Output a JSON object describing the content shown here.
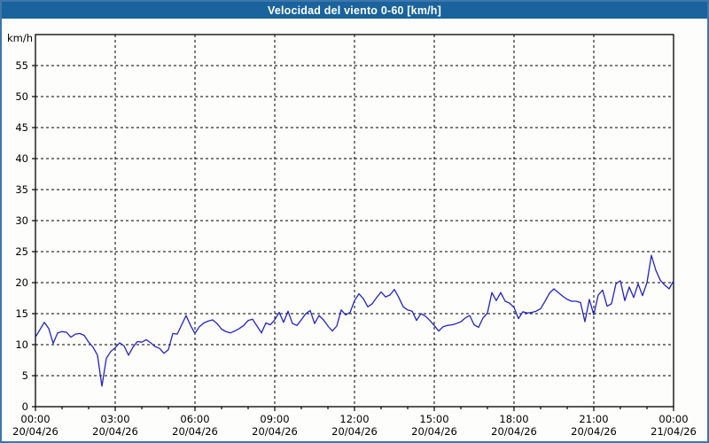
{
  "header": {
    "title": "Velocidad del viento 0-60 [km/h]"
  },
  "colors": {
    "titlebar_bg": "#1A639C",
    "titlebar_text": "#FFFFFF",
    "frame_border": "#3E76AC",
    "plot_background": "#FDFDFB",
    "grid": "#000000",
    "axis": "#000000",
    "line": "#2323C8"
  },
  "chart_data": {
    "type": "line",
    "title": "Velocidad del viento 0-60 [km/h]",
    "ylabel": "km/h",
    "ylim": [
      0,
      60
    ],
    "yticks": [
      0,
      5,
      10,
      15,
      20,
      25,
      30,
      35,
      40,
      45,
      50,
      55
    ],
    "x_hours_range": [
      0,
      24
    ],
    "x_sample_interval_minutes": 10,
    "x_minor_tick_every_hours": 1,
    "grid": "dashed",
    "legend": "none",
    "x_major_ticks": [
      {
        "hour": 0,
        "time": "00:00",
        "date": "20/04/26"
      },
      {
        "hour": 3,
        "time": "03:00",
        "date": "20/04/26"
      },
      {
        "hour": 6,
        "time": "06:00",
        "date": "20/04/26"
      },
      {
        "hour": 9,
        "time": "09:00",
        "date": "20/04/26"
      },
      {
        "hour": 12,
        "time": "12:00",
        "date": "20/04/26"
      },
      {
        "hour": 15,
        "time": "15:00",
        "date": "20/04/26"
      },
      {
        "hour": 18,
        "time": "18:00",
        "date": "20/04/26"
      },
      {
        "hour": 21,
        "time": "21:00",
        "date": "20/04/26"
      },
      {
        "hour": 24,
        "time": "00:00",
        "date": "21/04/26"
      }
    ],
    "values": [
      11.2,
      12.4,
      13.6,
      12.6,
      10.2,
      11.9,
      12.1,
      12.0,
      11.2,
      11.7,
      11.8,
      11.5,
      10.4,
      9.6,
      8.3,
      3.3,
      7.8,
      8.9,
      9.5,
      10.3,
      9.8,
      8.3,
      9.6,
      10.5,
      10.4,
      10.8,
      10.3,
      9.7,
      9.4,
      8.6,
      9.2,
      11.8,
      11.7,
      13.2,
      14.7,
      13.1,
      11.8,
      12.9,
      13.5,
      13.8,
      14.0,
      13.4,
      12.5,
      12.1,
      11.9,
      12.2,
      12.6,
      13.1,
      13.9,
      14.1,
      13.0,
      11.9,
      13.5,
      13.2,
      14.0,
      15.2,
      13.6,
      15.4,
      13.4,
      13.1,
      14.0,
      15.0,
      15.5,
      13.4,
      14.7,
      14.0,
      13.0,
      12.2,
      13.0,
      15.6,
      14.8,
      15.2,
      17.1,
      18.2,
      17.4,
      16.1,
      16.6,
      17.6,
      18.5,
      17.7,
      18.0,
      18.9,
      17.6,
      16.1,
      15.6,
      15.4,
      13.9,
      15.0,
      14.6,
      13.9,
      13.1,
      12.2,
      12.9,
      13.1,
      13.2,
      13.4,
      13.7,
      14.3,
      14.7,
      13.2,
      12.8,
      14.3,
      15.1,
      18.4,
      17.1,
      18.4,
      17.0,
      16.7,
      16.0,
      14.2,
      15.3,
      15.1,
      15.2,
      15.4,
      15.8,
      17.0,
      18.3,
      19.0,
      18.4,
      17.8,
      17.3,
      17.0,
      17.0,
      16.8,
      13.7,
      17.3,
      14.8,
      18.0,
      18.8,
      16.2,
      16.6,
      19.8,
      20.3,
      17.1,
      19.3,
      17.6,
      19.8,
      17.9,
      20.0,
      24.4,
      22.0,
      20.4,
      19.6,
      19.0,
      20.3
    ]
  }
}
